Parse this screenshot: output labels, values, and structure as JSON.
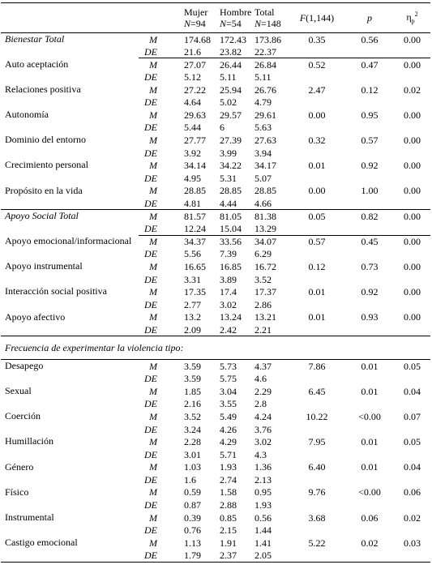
{
  "table": {
    "header": {
      "groups": [
        {
          "name": "Mujer",
          "n": {
            "symbol": "N",
            "value": "=94"
          }
        },
        {
          "name": "Hombre",
          "n": {
            "symbol": "N",
            "value": "=54"
          }
        },
        {
          "name": "Total",
          "n": {
            "symbol": "N",
            "value": "=148"
          }
        }
      ],
      "f": {
        "symbol": "F",
        "df": "(1,144)"
      },
      "p": "p",
      "eta": {
        "symbol": "η",
        "sub": "p",
        "sup": "2"
      }
    },
    "blocks": [
      {
        "total": {
          "label": "Bienestar Total",
          "rows": [
            {
              "stat": "M",
              "values": [
                "174.68",
                "172.43",
                "173.86",
                "0.35",
                "0.56",
                "0.00"
              ]
            },
            {
              "stat": "DE",
              "values": [
                "21.6",
                "23.82",
                "22.37"
              ]
            }
          ]
        },
        "items": [
          {
            "label": "Auto aceptación",
            "rows": [
              {
                "stat": "M",
                "values": [
                  "27.07",
                  "26.44",
                  "26.84",
                  "0.52",
                  "0.47",
                  "0.00"
                ]
              },
              {
                "stat": "DE",
                "values": [
                  "5.12",
                  "5.11",
                  "5.11"
                ]
              }
            ]
          },
          {
            "label": "Relaciones positiva",
            "rows": [
              {
                "stat": "M",
                "values": [
                  "27.22",
                  "25.94",
                  "26.76",
                  "2.47",
                  "0.12",
                  "0.02"
                ]
              },
              {
                "stat": "DE",
                "values": [
                  "4.64",
                  "5.02",
                  "4.79"
                ]
              }
            ]
          },
          {
            "label": "Autonomía",
            "rows": [
              {
                "stat": "M",
                "values": [
                  "29.63",
                  "29.57",
                  "29.61",
                  "0.00",
                  "0.95",
                  "0.00"
                ]
              },
              {
                "stat": "DE",
                "values": [
                  "5.44",
                  "6",
                  "5.63"
                ]
              }
            ]
          },
          {
            "label": "Dominio del entorno",
            "rows": [
              {
                "stat": "M",
                "values": [
                  "27.77",
                  "27.39",
                  "27.63",
                  "0.32",
                  "0.57",
                  "0.00"
                ]
              },
              {
                "stat": "DE",
                "values": [
                  "3.92",
                  "3.99",
                  "3.94"
                ]
              }
            ]
          },
          {
            "label": "Crecimiento personal",
            "rows": [
              {
                "stat": "M",
                "values": [
                  "34.14",
                  "34.22",
                  "34.17",
                  "0.01",
                  "0.92",
                  "0.00"
                ]
              },
              {
                "stat": "DE",
                "values": [
                  "4.95",
                  "5.31",
                  "5.07"
                ]
              }
            ]
          },
          {
            "label": "Propósito en la vida",
            "rows": [
              {
                "stat": "M",
                "values": [
                  "28.85",
                  "28.85",
                  "28.85",
                  "0.00",
                  "1.00",
                  "0.00"
                ]
              },
              {
                "stat": "DE",
                "values": [
                  "4.81",
                  "4.44",
                  "4.66"
                ]
              }
            ]
          }
        ]
      },
      {
        "total": {
          "label": "Apoyo Social Total",
          "rows": [
            {
              "stat": "M",
              "values": [
                "81.57",
                "81.05",
                "81.38",
                "0.05",
                "0.82",
                "0.00"
              ]
            },
            {
              "stat": "DE",
              "values": [
                "12.24",
                "15.04",
                "13.29"
              ]
            }
          ]
        },
        "items": [
          {
            "label": "Apoyo emocional/informacional",
            "rows": [
              {
                "stat": "M",
                "values": [
                  "34.37",
                  "33.56",
                  "34.07",
                  "0.57",
                  "0.45",
                  "0.00"
                ]
              },
              {
                "stat": "DE",
                "values": [
                  "5.56",
                  "7.39",
                  "6.29"
                ]
              }
            ]
          },
          {
            "label": "Apoyo instrumental",
            "rows": [
              {
                "stat": "M",
                "values": [
                  "16.65",
                  "16.85",
                  "16.72",
                  "0.12",
                  "0.73",
                  "0.00"
                ]
              },
              {
                "stat": "DE",
                "values": [
                  "3.31",
                  "3.89",
                  "3.52"
                ]
              }
            ]
          },
          {
            "label": "Interacción social positiva",
            "rows": [
              {
                "stat": "M",
                "values": [
                  "17.35",
                  "17.4",
                  "17.37",
                  "0.01",
                  "0.92",
                  "0.00"
                ]
              },
              {
                "stat": "DE",
                "values": [
                  "2.77",
                  "3.02",
                  "2.86"
                ]
              }
            ]
          },
          {
            "label": "Apoyo afectivo",
            "rows": [
              {
                "stat": "M",
                "values": [
                  "13.2",
                  "13.24",
                  "13.21",
                  "0.01",
                  "0.93",
                  "0.00"
                ]
              },
              {
                "stat": "DE",
                "values": [
                  "2.09",
                  "2.42",
                  "2.21"
                ]
              }
            ]
          }
        ]
      },
      {
        "heading": "Frecuencia de experimentar la violencia tipo:",
        "items": [
          {
            "label": "Desapego",
            "rows": [
              {
                "stat": "M",
                "values": [
                  "3.59",
                  "5.73",
                  "4.37",
                  "7.86",
                  "0.01",
                  "0.05"
                ]
              },
              {
                "stat": "DE",
                "values": [
                  "3.59",
                  "5.75",
                  "4.6"
                ]
              }
            ]
          },
          {
            "label": "Sexual",
            "rows": [
              {
                "stat": "M",
                "values": [
                  "1.85",
                  "3.04",
                  "2.29",
                  "6.45",
                  "0.01",
                  "0.04"
                ]
              },
              {
                "stat": "DE",
                "values": [
                  "2.16",
                  "3.55",
                  "2.8"
                ]
              }
            ]
          },
          {
            "label": "Coerción",
            "rows": [
              {
                "stat": "M",
                "values": [
                  "3.52",
                  "5.49",
                  "4.24",
                  "10.22",
                  "<0.00",
                  "0.07"
                ]
              },
              {
                "stat": "DE",
                "values": [
                  "3.24",
                  "4.26",
                  "3.76"
                ]
              }
            ]
          },
          {
            "label": "Humillación",
            "rows": [
              {
                "stat": "M",
                "values": [
                  "2.28",
                  "4.29",
                  "3.02",
                  "7.95",
                  "0.01",
                  "0.05"
                ]
              },
              {
                "stat": "DE",
                "values": [
                  "3.01",
                  "5.71",
                  "4.3"
                ]
              }
            ]
          },
          {
            "label": "Género",
            "rows": [
              {
                "stat": "M",
                "values": [
                  "1.03",
                  "1.93",
                  "1.36",
                  "6.40",
                  "0.01",
                  "0.04"
                ]
              },
              {
                "stat": "DE",
                "values": [
                  "1.6",
                  "2.74",
                  "2.13"
                ]
              }
            ]
          },
          {
            "label": "Físico",
            "rows": [
              {
                "stat": "M",
                "values": [
                  "0.59",
                  "1.58",
                  "0.95",
                  "9.76",
                  "<0.00",
                  "0.06"
                ]
              },
              {
                "stat": "DE",
                "values": [
                  "0.87",
                  "2.88",
                  "1.93"
                ]
              }
            ]
          },
          {
            "label": "Instrumental",
            "rows": [
              {
                "stat": "M",
                "values": [
                  "0.39",
                  "0.85",
                  "0.56",
                  "3.68",
                  "0.06",
                  "0.02"
                ]
              },
              {
                "stat": "DE",
                "values": [
                  "0.76",
                  "2.15",
                  "1.44"
                ]
              }
            ]
          },
          {
            "label": "Castigo emocional",
            "rows": [
              {
                "stat": "M",
                "values": [
                  "1.13",
                  "1.91",
                  "1.41",
                  "5.22",
                  "0.02",
                  "0.03"
                ]
              },
              {
                "stat": "DE",
                "values": [
                  "1.79",
                  "2.37",
                  "2.05"
                ]
              }
            ]
          }
        ]
      }
    ]
  }
}
